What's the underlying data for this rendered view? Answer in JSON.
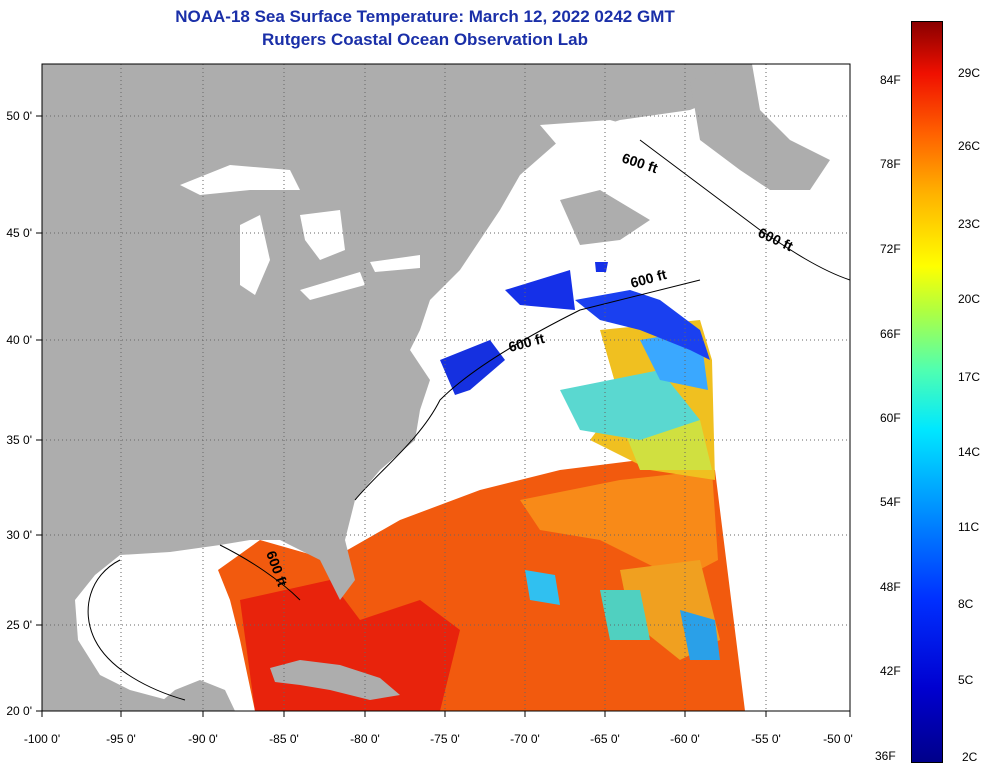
{
  "header": {
    "title": "NOAA-18 Sea Surface Temperature:  March 12, 2022 0242 GMT",
    "subtitle": "Rutgers Coastal Ocean Observation Lab"
  },
  "map": {
    "lon_ticks": [
      "-100 0'",
      "-95 0'",
      "-90 0'",
      "-85 0'",
      "-80 0'",
      "-75 0'",
      "-70 0'",
      "-65 0'",
      "-60 0'",
      "-55 0'",
      "-50 0'"
    ],
    "lat_ticks": [
      "50 0'",
      "45 0'",
      "40 0'",
      "35 0'",
      "30 0'",
      "25 0'",
      "20 0'"
    ],
    "contour_labels": [
      "600 ft",
      "600 ft",
      "600 ft",
      "600 ft",
      "600 ft"
    ],
    "colors": {
      "land": "#adadad",
      "no_data": "#ffffff",
      "grid": "#666666"
    }
  },
  "colorbar": {
    "fahrenheit": [
      "84F",
      "78F",
      "72F",
      "66F",
      "60F",
      "54F",
      "48F",
      "42F",
      "36F"
    ],
    "celsius": [
      "29C",
      "26C",
      "23C",
      "20C",
      "17C",
      "14C",
      "11C",
      "8C",
      "5C",
      "2C"
    ]
  }
}
